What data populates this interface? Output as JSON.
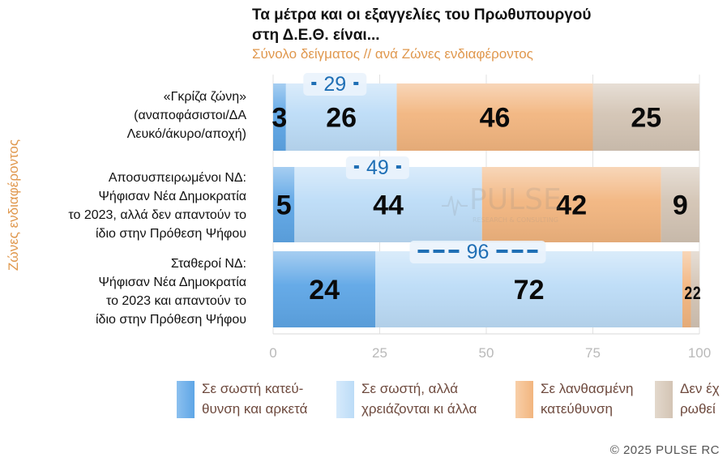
{
  "chart_data": {
    "type": "bar",
    "orientation": "horizontal",
    "stacked": true,
    "title": "Τα μέτρα και οι εξαγγελίες του Πρωθυπουργού στη Δ.Ε.Θ. είναι...",
    "title_lines": [
      "Τα μέτρα και οι εξαγγελίες του Πρωθυπουργού",
      "στη Δ.Ε.Θ. είναι..."
    ],
    "subtitle": "Σύνολο δείγματος // ανά Ζώνες ενδιαφέροντος",
    "ylabel": "Ζώνες ενδιαφέροντος",
    "xlim": [
      0,
      100
    ],
    "xticks": [
      "0",
      "25",
      "50",
      "75",
      "100"
    ],
    "categories": [
      [
        "«Γκρίζα ζώνη»",
        "(αναποφάσιστοι/ΔΑ",
        "Λευκό/άκυρο/αποχή)"
      ],
      [
        "Αποσυσπειρωμένοι ΝΔ:",
        "Ψήφισαν Νέα Δημοκρατία",
        "το 2023, αλλά δεν απαντούν το",
        "ίδιο στην Πρόθεση Ψήφου"
      ],
      [
        "Σταθεροί ΝΔ:",
        "Ψήφισαν Νέα Δημοκρατία",
        "το 2023 και απαντούν το",
        "ίδιο στην Πρόθεση Ψήφου"
      ]
    ],
    "series": [
      {
        "name": "Σε σωστή κατεύθυνση και αρκετά",
        "legend_lines": [
          "Σε σωστή κατεύ-",
          "θυνση και αρκετά"
        ],
        "color": "#5ea6e6",
        "values": [
          3,
          5,
          24
        ]
      },
      {
        "name": "Σε σωστή, αλλά χρειάζονται κι άλλα",
        "legend_lines": [
          "Σε σωστή, αλλά",
          "χρειάζονται κι άλλα"
        ],
        "color": "#bcdcf7",
        "values": [
          26,
          44,
          72
        ]
      },
      {
        "name": "Σε λανθασμένη κατεύθυνση",
        "legend_lines": [
          "Σε λανθασμένη",
          "κατεύθυνση"
        ],
        "color": "#f2b57f",
        "values": [
          46,
          42,
          2
        ]
      },
      {
        "name": "Δεν έχ ρωθεί",
        "legend_lines": [
          "Δεν έχ",
          "ρωθεί"
        ],
        "color": "#d3c4b4",
        "values": [
          25,
          9,
          2
        ]
      }
    ],
    "net_positive": [
      29,
      49,
      96
    ]
  },
  "watermark": {
    "brand": "PULSE",
    "tagline": "RESEARCH & CONSULTING"
  },
  "copyright": "©  2025  PULSE RC"
}
